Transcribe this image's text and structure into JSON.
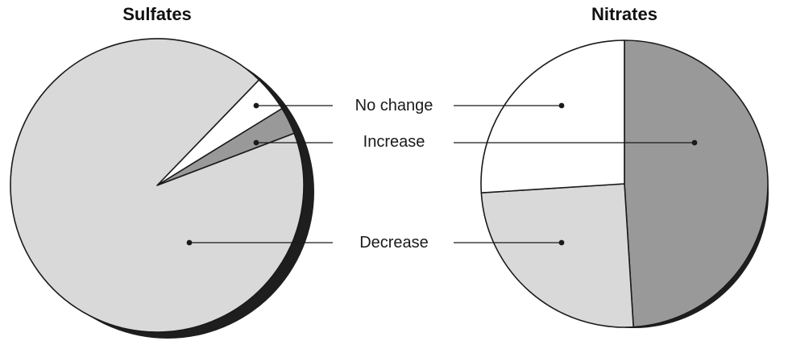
{
  "chart_data": [
    {
      "type": "pie",
      "title": "Sulfates",
      "categories": [
        "No change",
        "Increase",
        "Decrease"
      ],
      "values": [
        4,
        3,
        93
      ],
      "colors": [
        "#ffffff",
        "#999999",
        "#d9d9d9"
      ],
      "shadow_color": "#1e1e1e"
    },
    {
      "type": "pie",
      "title": "Nitrates",
      "categories": [
        "No change",
        "Increase",
        "Decrease"
      ],
      "values": [
        26,
        49,
        25
      ],
      "colors": [
        "#ffffff",
        "#999999",
        "#d9d9d9"
      ],
      "shadow_color": "#1e1e1e"
    }
  ],
  "legend": {
    "items": [
      "No change",
      "Increase",
      "Decrease"
    ],
    "placement": "center, between the two pies"
  }
}
